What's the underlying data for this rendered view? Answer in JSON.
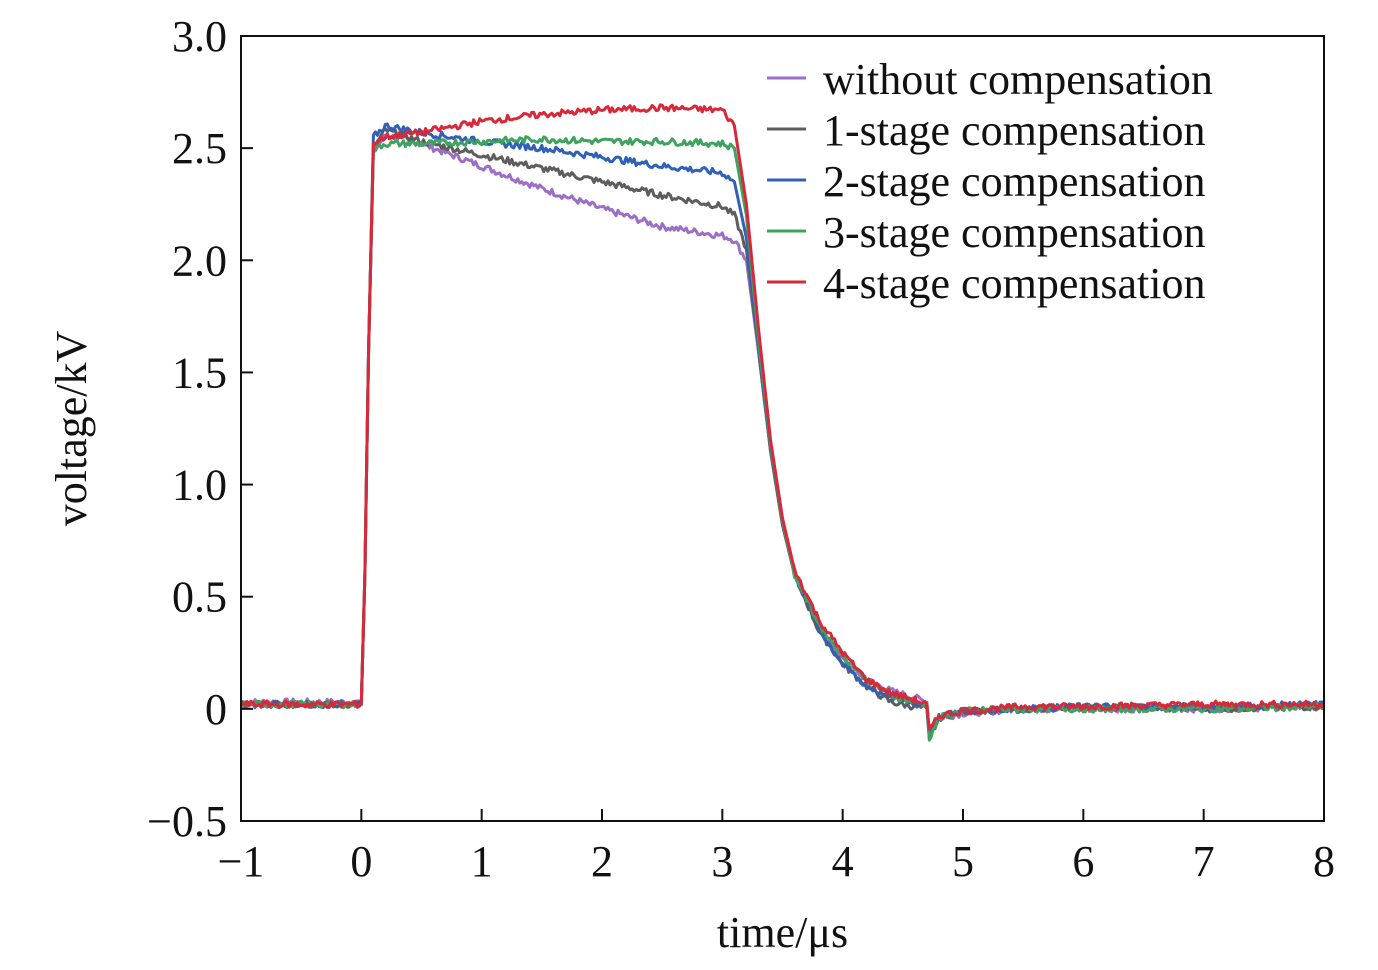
{
  "chart_data": {
    "type": "line",
    "title": "",
    "xlabel": "time/μs",
    "ylabel": "voltage/kV",
    "xlim": [
      -1,
      8
    ],
    "ylim": [
      -0.5,
      3.0
    ],
    "x_ticks": [
      -1,
      0,
      1,
      2,
      3,
      4,
      5,
      6,
      7,
      8
    ],
    "x_tick_labels": [
      "−1",
      "0",
      "1",
      "2",
      "3",
      "4",
      "5",
      "6",
      "7",
      "8"
    ],
    "y_ticks": [
      -0.5,
      0,
      0.5,
      1.0,
      1.5,
      2.0,
      2.5,
      3.0
    ],
    "y_tick_labels": [
      "−0.5",
      "0",
      "0.5",
      "1.0",
      "1.5",
      "2.0",
      "2.5",
      "3.0"
    ],
    "grid": false,
    "legend_position": "top-right",
    "series": [
      {
        "name": "without compensation",
        "color": "#9b6fc6",
        "x": [
          -1,
          0,
          0.03,
          0.06,
          0.1,
          0.2,
          0.5,
          1.0,
          1.5,
          2.0,
          2.5,
          3.0,
          3.1,
          3.2,
          3.3,
          3.4,
          3.5,
          3.6,
          3.8,
          4.0,
          4.2,
          4.4,
          4.6,
          4.7,
          4.72,
          4.8,
          5.0,
          5.5,
          6,
          7,
          8
        ],
        "y": [
          0.03,
          0.03,
          0.6,
          1.6,
          2.48,
          2.56,
          2.52,
          2.42,
          2.32,
          2.23,
          2.15,
          2.11,
          2.09,
          2.0,
          1.6,
          1.15,
          0.82,
          0.6,
          0.36,
          0.22,
          0.13,
          0.08,
          0.05,
          0.03,
          -0.12,
          -0.04,
          -0.02,
          0.0,
          0.0,
          0.0,
          0.01
        ]
      },
      {
        "name": "1-stage compensation",
        "color": "#5d5d5d",
        "x": [
          -1,
          0,
          0.03,
          0.06,
          0.1,
          0.2,
          0.5,
          1.0,
          1.5,
          2.0,
          2.5,
          3.0,
          3.1,
          3.2,
          3.3,
          3.4,
          3.5,
          3.6,
          3.8,
          4.0,
          4.2,
          4.4,
          4.6,
          4.7,
          4.72,
          4.8,
          5.0,
          5.5,
          6,
          7,
          8
        ],
        "y": [
          0.02,
          0.02,
          0.6,
          1.6,
          2.5,
          2.58,
          2.53,
          2.47,
          2.41,
          2.35,
          2.29,
          2.24,
          2.2,
          2.05,
          1.6,
          1.15,
          0.82,
          0.6,
          0.35,
          0.2,
          0.1,
          0.03,
          0.01,
          0.0,
          -0.14,
          -0.04,
          -0.01,
          0.0,
          0.01,
          0.0,
          0.01
        ]
      },
      {
        "name": "2-stage compensation",
        "color": "#3060b8",
        "x": [
          -1,
          0,
          0.03,
          0.06,
          0.1,
          0.2,
          0.5,
          1.0,
          1.5,
          2.0,
          2.5,
          3.0,
          3.1,
          3.2,
          3.3,
          3.4,
          3.5,
          3.6,
          3.8,
          4.0,
          4.2,
          4.4,
          4.6,
          4.7,
          4.72,
          4.8,
          5.0,
          5.5,
          6,
          7,
          8
        ],
        "y": [
          0.02,
          0.02,
          0.6,
          1.6,
          2.55,
          2.6,
          2.57,
          2.53,
          2.5,
          2.46,
          2.42,
          2.39,
          2.35,
          2.1,
          1.62,
          1.17,
          0.84,
          0.6,
          0.36,
          0.2,
          0.1,
          0.05,
          0.03,
          0.02,
          -0.12,
          -0.03,
          -0.01,
          0.0,
          0.01,
          0.01,
          0.02
        ]
      },
      {
        "name": "3-stage compensation",
        "color": "#3fa35f",
        "x": [
          -1,
          0,
          0.03,
          0.06,
          0.1,
          0.2,
          0.5,
          1.0,
          1.5,
          2.0,
          2.5,
          3.0,
          3.1,
          3.2,
          3.3,
          3.4,
          3.5,
          3.6,
          3.8,
          4.0,
          4.2,
          4.4,
          4.6,
          4.7,
          4.72,
          4.8,
          5.0,
          5.5,
          6,
          7,
          8
        ],
        "y": [
          0.02,
          0.02,
          0.6,
          1.6,
          2.5,
          2.52,
          2.52,
          2.53,
          2.54,
          2.53,
          2.53,
          2.52,
          2.5,
          2.2,
          1.65,
          1.18,
          0.84,
          0.6,
          0.38,
          0.24,
          0.13,
          0.06,
          0.03,
          0.02,
          -0.13,
          -0.04,
          -0.01,
          0.0,
          0.0,
          0.0,
          0.01
        ]
      },
      {
        "name": "4-stage compensation",
        "color": "#d8283a",
        "x": [
          -1,
          0,
          0.03,
          0.06,
          0.1,
          0.2,
          0.5,
          1.0,
          1.5,
          2.0,
          2.5,
          3.0,
          3.1,
          3.2,
          3.3,
          3.4,
          3.5,
          3.6,
          3.8,
          4.0,
          4.2,
          4.4,
          4.6,
          4.7,
          4.72,
          4.8,
          5.0,
          5.5,
          6,
          7,
          8
        ],
        "y": [
          0.02,
          0.02,
          0.6,
          1.6,
          2.52,
          2.55,
          2.57,
          2.62,
          2.65,
          2.67,
          2.68,
          2.67,
          2.6,
          2.25,
          1.7,
          1.2,
          0.85,
          0.62,
          0.4,
          0.25,
          0.13,
          0.07,
          0.04,
          0.02,
          -0.1,
          -0.03,
          -0.01,
          0.01,
          0.01,
          0.02,
          0.02
        ]
      }
    ]
  }
}
